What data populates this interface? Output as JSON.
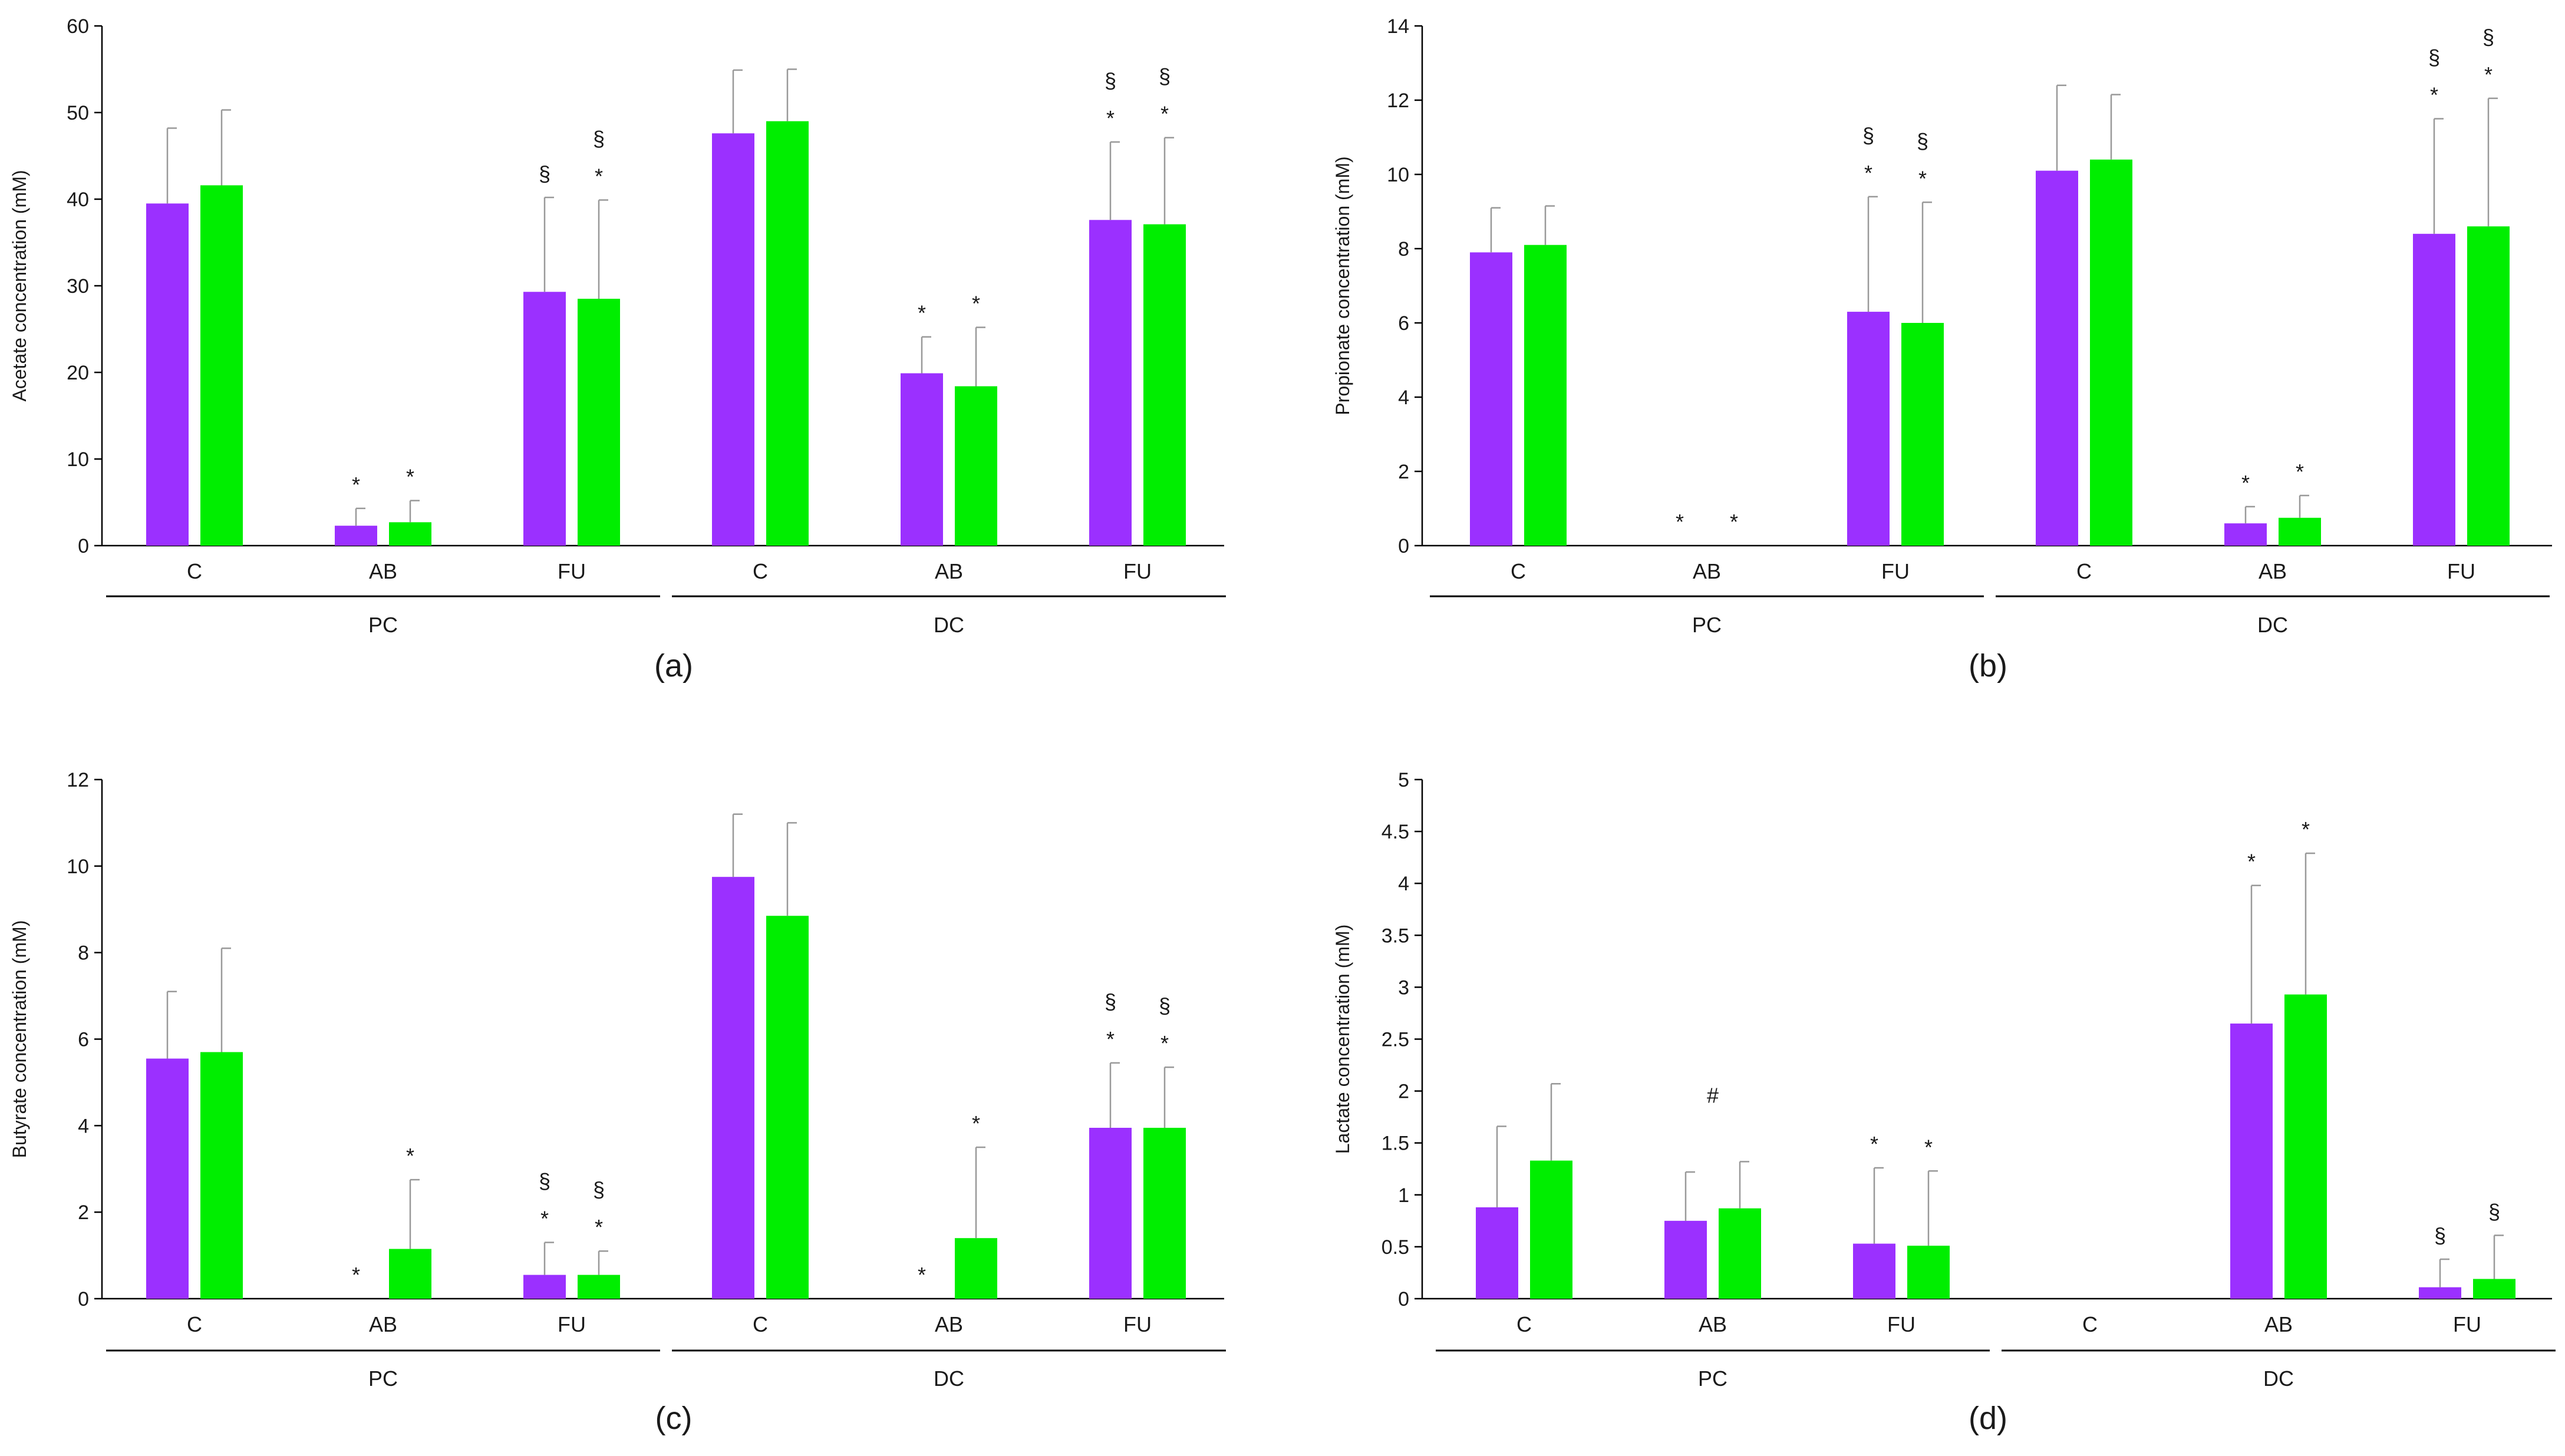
{
  "colors": {
    "series1": "#9b30ff",
    "series2": "#00ee00",
    "axis": "#000000",
    "errorbar": "#999999"
  },
  "chart_data": [
    {
      "type": "bar",
      "panel_label": "(a)",
      "ylabel": "Acetate concentration (mM)",
      "ylim": [
        0,
        60
      ],
      "yticks": [
        "0",
        "10",
        "20",
        "30",
        "40",
        "50",
        "60"
      ],
      "categories": [
        "C",
        "AB",
        "FU",
        "C",
        "AB",
        "FU"
      ],
      "groups": [
        {
          "label": "PC",
          "span": [
            0,
            2
          ]
        },
        {
          "label": "DC",
          "span": [
            3,
            5
          ]
        }
      ],
      "series": [
        {
          "values": [
            39.5,
            2.3,
            29.3,
            47.6,
            19.9,
            37.6
          ],
          "errors": [
            8.7,
            2.0,
            10.9,
            7.3,
            4.2,
            9.0
          ],
          "annotations": [
            "",
            "*",
            "§",
            "",
            "*",
            "§\n*"
          ]
        },
        {
          "values": [
            41.6,
            2.7,
            28.5,
            49.0,
            18.4,
            37.1
          ],
          "errors": [
            8.7,
            2.5,
            11.4,
            6.0,
            6.8,
            10.0
          ],
          "annotations": [
            "",
            "*",
            "§\n*",
            "",
            "*",
            "§\n*"
          ]
        }
      ]
    },
    {
      "type": "bar",
      "panel_label": "(b)",
      "ylabel": "Propionate concentration (mM)",
      "ylim": [
        0,
        14
      ],
      "yticks": [
        "0",
        "2",
        "4",
        "6",
        "8",
        "10",
        "12",
        "14"
      ],
      "categories": [
        "C",
        "AB",
        "FU",
        "C",
        "AB",
        "FU"
      ],
      "groups": [
        {
          "label": "PC",
          "span": [
            0,
            2
          ]
        },
        {
          "label": "DC",
          "span": [
            3,
            5
          ]
        }
      ],
      "series": [
        {
          "values": [
            7.9,
            0.0,
            6.3,
            10.1,
            0.6,
            8.4
          ],
          "errors": [
            1.2,
            0.0,
            3.1,
            2.3,
            0.45,
            3.1
          ],
          "annotations": [
            "",
            "*",
            "§\n*",
            "",
            "*",
            "§\n*"
          ]
        },
        {
          "values": [
            8.1,
            0.0,
            6.0,
            10.4,
            0.75,
            8.6
          ],
          "errors": [
            1.05,
            0.0,
            3.25,
            1.75,
            0.6,
            3.45
          ],
          "annotations": [
            "",
            "*",
            "§\n*",
            "",
            "*",
            "§\n*"
          ]
        }
      ]
    },
    {
      "type": "bar",
      "panel_label": "(c)",
      "ylabel": "Butyrate concentration (mM)",
      "ylim": [
        0,
        12
      ],
      "yticks": [
        "0",
        "2",
        "4",
        "6",
        "8",
        "10",
        "12"
      ],
      "categories": [
        "C",
        "AB",
        "FU",
        "C",
        "AB",
        "FU"
      ],
      "groups": [
        {
          "label": "PC",
          "span": [
            0,
            2
          ]
        },
        {
          "label": "DC",
          "span": [
            3,
            5
          ]
        }
      ],
      "series": [
        {
          "values": [
            5.55,
            0.0,
            0.55,
            9.75,
            0.0,
            3.95
          ],
          "errors": [
            1.55,
            0.0,
            0.75,
            1.45,
            0.0,
            1.5
          ],
          "annotations": [
            "",
            "*",
            "§\n*",
            "",
            "*",
            "§\n*"
          ]
        },
        {
          "values": [
            5.7,
            1.15,
            0.55,
            8.85,
            1.4,
            3.95
          ],
          "errors": [
            2.4,
            1.6,
            0.55,
            2.15,
            2.1,
            1.4
          ],
          "annotations": [
            "",
            "*",
            "§\n*",
            "",
            "*",
            "§\n*"
          ]
        }
      ]
    },
    {
      "type": "bar",
      "panel_label": "(d)",
      "ylabel": "Lactate concentration (mM)",
      "ylim": [
        0,
        5
      ],
      "yticks": [
        "0",
        "0.5",
        "1",
        "1.5",
        "2",
        "2.5",
        "3",
        "3.5",
        "4",
        "4.5",
        "5"
      ],
      "categories": [
        "C",
        "AB",
        "FU",
        "C",
        "AB",
        "FU"
      ],
      "groups": [
        {
          "label": "PC",
          "span": [
            0,
            2
          ]
        },
        {
          "label": "DC",
          "span": [
            3,
            5
          ]
        }
      ],
      "series": [
        {
          "values": [
            0.88,
            0.75,
            0.53,
            0.0,
            2.65,
            0.11
          ],
          "errors": [
            0.78,
            0.47,
            0.73,
            0.0,
            1.33,
            0.27
          ],
          "annotations": [
            "",
            "",
            "*",
            "",
            "*",
            "§"
          ]
        },
        {
          "values": [
            1.33,
            0.87,
            0.51,
            0.0,
            2.93,
            0.19
          ],
          "errors": [
            0.74,
            0.45,
            0.72,
            0.0,
            1.36,
            0.42
          ],
          "annotations": [
            "",
            "",
            "*",
            "",
            "*",
            "§"
          ]
        }
      ],
      "category_annotations": [
        "",
        "#",
        "",
        "",
        "",
        ""
      ]
    }
  ]
}
